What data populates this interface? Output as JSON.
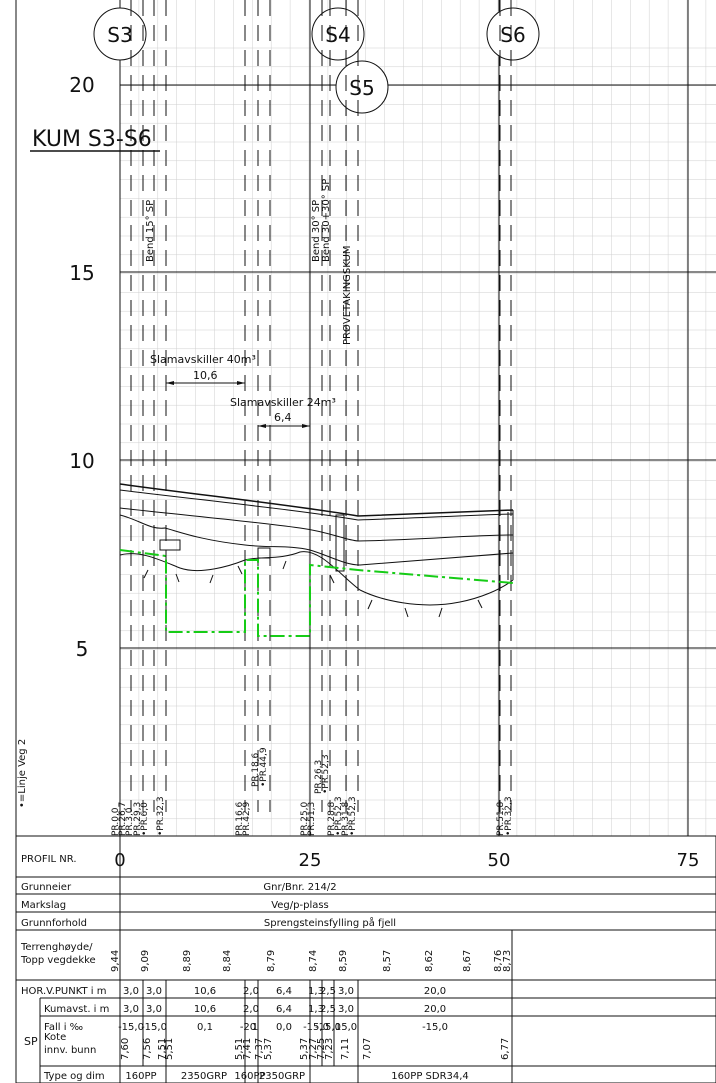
{
  "title": "KUM S3-S6",
  "stations": [
    {
      "id": "S3",
      "label": "S3"
    },
    {
      "id": "S4",
      "label": "S4"
    },
    {
      "id": "S5",
      "label": "S5"
    },
    {
      "id": "S6",
      "label": "S6"
    }
  ],
  "elevation_labels": [
    "20",
    "15",
    "10",
    "5"
  ],
  "vertical_notes": {
    "bend15": "Bend 15° SP",
    "bend30a": "Bend 30° SP",
    "bend30b": "Bend 30+30° SP",
    "provetaking": "PRØVETAKINGSKUM"
  },
  "dimensions": {
    "slam40_label": "Slamavskiller 40m³",
    "slam40_value": "10,6",
    "slam24_label": "Slamavskiller 24m³",
    "slam24_value": "6,4"
  },
  "side_label": "•=Linje Veg 2",
  "pr_groups": [
    [
      "PR.0,0",
      "PR.26,7",
      "PR.3,0"
    ],
    [
      "PR.29,3",
      "•PR.6,0"
    ],
    [
      "•PR.32,3"
    ],
    [
      "PR.16,6",
      "PR.42,9"
    ],
    [
      "PR.18,6",
      "•PR.44,9"
    ],
    [
      "PR.25,0",
      "PR.51,3"
    ],
    [
      "PR.26,3",
      "•PR.52,3"
    ],
    [
      "PR.28,8",
      "•PR.52,3",
      "PR.31,8",
      "•PR.52,3"
    ],
    [
      "PR.51,8",
      "•PR.32,3"
    ]
  ],
  "profile": {
    "label": "PROFIL NR.",
    "ticks": [
      "0",
      "25",
      "50",
      "75"
    ]
  },
  "rows": {
    "grunneier": {
      "label": "Grunneier",
      "value": "Gnr/Bnr. 214/2"
    },
    "markslag": {
      "label": "Markslag",
      "value": "Veg/p-plass"
    },
    "grunnforhold": {
      "label": "Grunnforhold",
      "value": "Sprengsteinsfylling på fjell"
    },
    "terreng": {
      "label1": "Terrenghøyde/",
      "label2": "Topp vegdekke",
      "values": [
        "9,44",
        "9,09",
        "8,89",
        "8,84",
        "8,79",
        "8,74",
        "8,59",
        "8,57",
        "8,62",
        "8,67",
        "8,76",
        "8,73"
      ]
    },
    "horv": {
      "label": "HOR.V.PUNKT i m",
      "values": [
        "3,0",
        "3,0",
        "10,6",
        "2,0",
        "6,4",
        "1,3",
        "2,5",
        "3,0",
        "20,0"
      ]
    },
    "sp_label": "SP",
    "kumavst": {
      "label": "Kumavst. i m",
      "values": [
        "3,0",
        "3,0",
        "10,6",
        "2,0",
        "6,4",
        "1,3",
        "2,5",
        "3,0",
        "20,0"
      ]
    },
    "fall": {
      "label": "Fall i ‰",
      "values": [
        "-15,0",
        "-15,0",
        "0,1",
        "-20",
        "1",
        "0,0",
        "-15,0",
        "-15,0",
        "15,0",
        "-15,0"
      ]
    },
    "kote": {
      "label1": "Kote",
      "label2": "innv. bunn",
      "values": [
        "7,60",
        "7,56",
        "7,51",
        "5,51",
        "5,51",
        "7,41",
        "7,37",
        "5,37",
        "5,37",
        "7,27",
        "7,25",
        "7,23",
        "7,11",
        "7,07",
        "6,77"
      ]
    },
    "type": {
      "label": "Type og dim",
      "values": [
        "160PP",
        "2350GRP",
        "160PP",
        "2350GRP",
        "160PP SDR34,4"
      ]
    }
  },
  "colors": {
    "line": "#111111",
    "grid": "#cfcfcf",
    "rock": "#16cc16"
  }
}
